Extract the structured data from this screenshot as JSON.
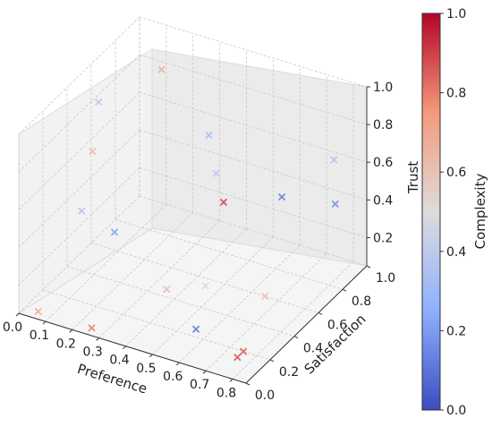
{
  "chart_data": {
    "type": "scatter",
    "projection": "3d",
    "marker": "x",
    "xlabel": "Preference",
    "ylabel": "Satisfaction",
    "zlabel": "Trust",
    "colorbar_label": "Complexity",
    "colormap": "coolwarm",
    "xlim": [
      0.0,
      0.85
    ],
    "ylim": [
      0.0,
      1.0
    ],
    "zlim": [
      0.05,
      1.0
    ],
    "x_ticks": [
      "0.0",
      "0.1",
      "0.2",
      "0.3",
      "0.4",
      "0.5",
      "0.6",
      "0.7",
      "0.8"
    ],
    "y_ticks": [
      "0.0",
      "0.2",
      "0.4",
      "0.6",
      "0.8",
      "1.0"
    ],
    "z_ticks": [
      "0.2",
      "0.4",
      "0.6",
      "0.8",
      "1.0"
    ],
    "colorbar_ticks": [
      "0.0",
      "0.2",
      "0.4",
      "0.6",
      "0.8",
      "1.0"
    ],
    "grid": true,
    "points": [
      {
        "x": 0.05,
        "y": 0.55,
        "z": 0.85,
        "c": 0.38
      },
      {
        "x": 0.05,
        "y": 0.5,
        "z": 0.62,
        "c": 0.64
      },
      {
        "x": 0.15,
        "y": 0.85,
        "z": 0.88,
        "c": 0.66
      },
      {
        "x": 0.35,
        "y": 0.8,
        "z": 0.65,
        "c": 0.32
      },
      {
        "x": 0.4,
        "y": 0.75,
        "z": 0.5,
        "c": 0.38
      },
      {
        "x": 0.45,
        "y": 0.7,
        "z": 0.4,
        "c": 0.9
      },
      {
        "x": 0.6,
        "y": 0.85,
        "z": 0.4,
        "c": 0.12
      },
      {
        "x": 0.75,
        "y": 0.95,
        "z": 0.6,
        "c": 0.36
      },
      {
        "x": 0.8,
        "y": 0.85,
        "z": 0.45,
        "c": 0.16
      },
      {
        "x": 0.1,
        "y": 0.3,
        "z": 0.45,
        "c": 0.36
      },
      {
        "x": 0.2,
        "y": 0.35,
        "z": 0.35,
        "c": 0.2
      },
      {
        "x": 0.05,
        "y": 0.05,
        "z": 0.05,
        "c": 0.7
      },
      {
        "x": 0.25,
        "y": 0.05,
        "z": 0.05,
        "c": 0.8
      },
      {
        "x": 0.35,
        "y": 0.45,
        "z": 0.05,
        "c": 0.62
      },
      {
        "x": 0.45,
        "y": 0.55,
        "z": 0.05,
        "c": 0.52
      },
      {
        "x": 0.65,
        "y": 0.6,
        "z": 0.05,
        "c": 0.6
      },
      {
        "x": 0.55,
        "y": 0.25,
        "z": 0.05,
        "c": 0.1
      },
      {
        "x": 0.75,
        "y": 0.2,
        "z": 0.05,
        "c": 0.86
      },
      {
        "x": 0.75,
        "y": 0.15,
        "z": 0.05,
        "c": 0.88
      }
    ]
  }
}
